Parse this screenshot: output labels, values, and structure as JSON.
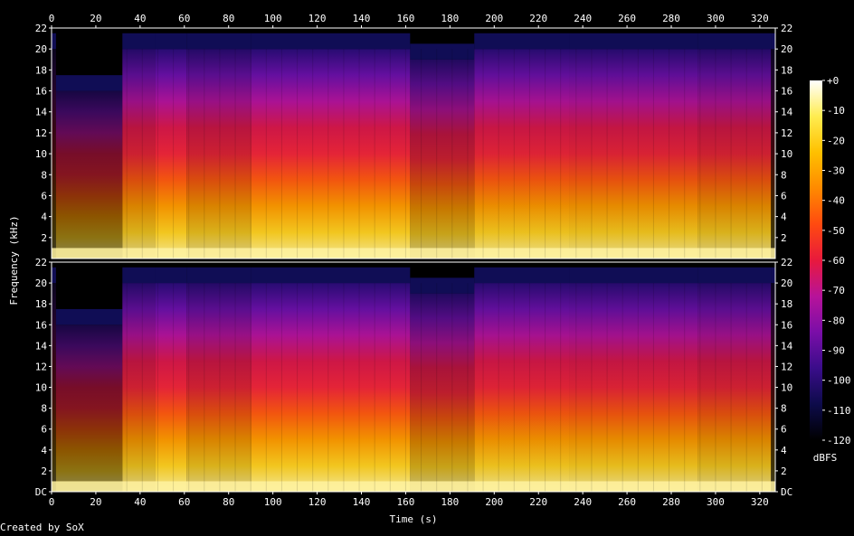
{
  "chart_data": {
    "type": "heatmap",
    "title": "",
    "xlabel": "Time (s)",
    "ylabel": "Frequency (kHz)",
    "x_ticks": [
      "0",
      "20",
      "40",
      "60",
      "80",
      "100",
      "120",
      "140",
      "160",
      "180",
      "200",
      "220",
      "240",
      "260",
      "280",
      "300",
      "320"
    ],
    "x_range": [
      0,
      327
    ],
    "y_ticks_top": [
      "2",
      "4",
      "6",
      "8",
      "10",
      "12",
      "14",
      "16",
      "18",
      "20",
      "22"
    ],
    "y_ticks_bottom": [
      "DC",
      "2",
      "4",
      "6",
      "8",
      "10",
      "12",
      "14",
      "16",
      "18",
      "20",
      "22"
    ],
    "y_range": [
      0,
      22
    ],
    "channels": 2,
    "colorbar": {
      "label": "dBFS",
      "ticks": [
        "+0",
        "-10",
        "-20",
        "-30",
        "-40",
        "-50",
        "-60",
        "-70",
        "-80",
        "-90",
        "-100",
        "-110",
        "-120"
      ],
      "range": [
        -120,
        0
      ],
      "colors": [
        "#000000",
        "#0d0b4a",
        "#3a0d8a",
        "#7a0ea8",
        "#b7139a",
        "#e8193d",
        "#ff4a10",
        "#ff8a00",
        "#ffc000",
        "#ffec50",
        "#ffffff"
      ]
    },
    "segments": [
      {
        "start": 0,
        "end": 2,
        "cutoff_khz": 20,
        "level": 0.25
      },
      {
        "start": 2,
        "end": 32,
        "cutoff_khz": 16,
        "level": 0.55
      },
      {
        "start": 32,
        "end": 47,
        "cutoff_khz": 20,
        "level": 0.85
      },
      {
        "start": 47,
        "end": 61,
        "cutoff_khz": 20,
        "level": 0.95
      },
      {
        "start": 61,
        "end": 90,
        "cutoff_khz": 20,
        "level": 0.85
      },
      {
        "start": 90,
        "end": 162,
        "cutoff_khz": 20,
        "level": 0.95
      },
      {
        "start": 162,
        "end": 191,
        "cutoff_khz": 19,
        "level": 0.78
      },
      {
        "start": 191,
        "end": 234,
        "cutoff_khz": 20,
        "level": 0.92
      },
      {
        "start": 234,
        "end": 292,
        "cutoff_khz": 20,
        "level": 0.9
      },
      {
        "start": 292,
        "end": 325,
        "cutoff_khz": 20,
        "level": 0.85
      },
      {
        "start": 325,
        "end": 327,
        "cutoff_khz": 20,
        "level": 0.25
      }
    ]
  },
  "footer": {
    "credit": "Created by SoX"
  }
}
